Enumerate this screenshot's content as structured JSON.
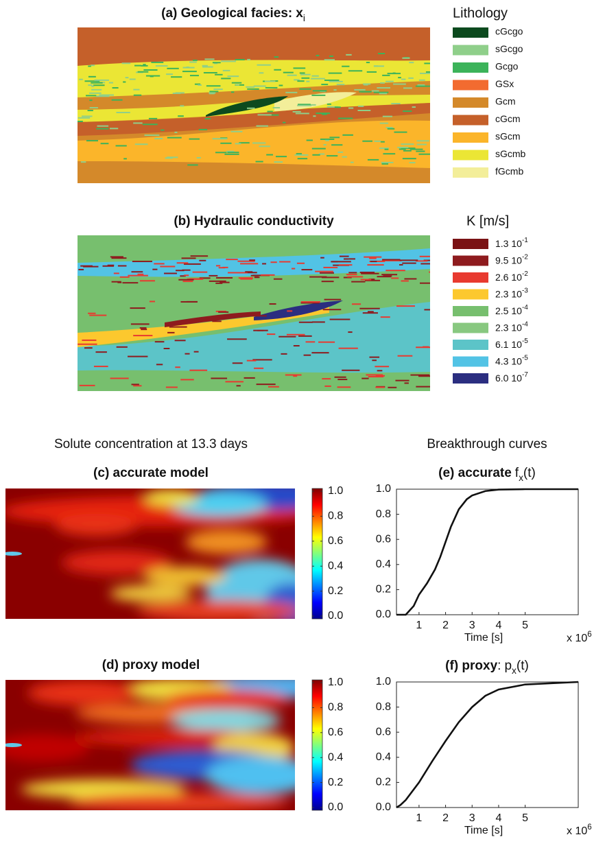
{
  "facies_panel": {
    "title": [
      {
        "text": "(a) Geological facies",
        "bold": true
      },
      {
        "text": ":",
        "bold": true
      },
      {
        "text": "x",
        "bold": true,
        "space_before": true
      },
      {
        "text": "i",
        "sub": true
      }
    ],
    "legend_title": "Lithology",
    "legend": [
      {
        "label": "cGcgo",
        "color": "#0c4a1e"
      },
      {
        "label": "sGcgo",
        "color": "#8fcf8a"
      },
      {
        "label": "Gcgo",
        "color": "#3cb35a"
      },
      {
        "label": "GSx",
        "color": "#f26b30"
      },
      {
        "label": "Gcm",
        "color": "#d4892a"
      },
      {
        "label": "cGcm",
        "color": "#c5602a"
      },
      {
        "label": "sGcm",
        "color": "#fbb52a"
      },
      {
        "label": "sGcmb",
        "color": "#ebe635"
      },
      {
        "label": "fGcmb",
        "color": "#f3ee9a"
      }
    ]
  },
  "conductivity_panel": {
    "title": [
      {
        "text": "(b) Hydraulic conductivity",
        "bold": true
      }
    ],
    "legend_title": "K [m/s]",
    "legend": [
      {
        "label": [
          {
            "text": "1.3 10"
          },
          {
            "text": "-1",
            "sup": true
          }
        ],
        "color": "#7a1214"
      },
      {
        "label": [
          {
            "text": "9.5 10"
          },
          {
            "text": "-2",
            "sup": true
          }
        ],
        "color": "#8e1b1e"
      },
      {
        "label": [
          {
            "text": "2.6 10"
          },
          {
            "text": "-2",
            "sup": true
          }
        ],
        "color": "#e83a30"
      },
      {
        "label": [
          {
            "text": "2.3 10"
          },
          {
            "text": "-3",
            "sup": true
          }
        ],
        "color": "#fcc82e"
      },
      {
        "label": [
          {
            "text": "2.5 10"
          },
          {
            "text": "-4",
            "sup": true
          }
        ],
        "color": "#77bf6e"
      },
      {
        "label": [
          {
            "text": "2.3 10"
          },
          {
            "text": "-4",
            "sup": true
          }
        ],
        "color": "#88c880"
      },
      {
        "label": [
          {
            "text": "6.1 10"
          },
          {
            "text": "-5",
            "sup": true
          }
        ],
        "color": "#5cc4c8"
      },
      {
        "label": [
          {
            "text": "4.3 10"
          },
          {
            "text": "-5",
            "sup": true
          }
        ],
        "color": "#52c3e5"
      },
      {
        "label": [
          {
            "text": "6.0 10"
          },
          {
            "text": "-7",
            "sup": true
          }
        ],
        "color": "#2b2e80"
      }
    ]
  },
  "concentration_heading": "Solute concentration at 13.3 days",
  "breakthrough_heading": "Breakthrough curves",
  "chart_data": [
    {
      "type": "heatmap",
      "title": [
        {
          "text": "(c) accurate model",
          "bold": true
        }
      ],
      "colormap": "jet",
      "clim": [
        0,
        1
      ],
      "colorbar_ticks": [
        {
          "value": 1,
          "label": "1.0"
        },
        {
          "value": 0.8,
          "label": "0.8"
        },
        {
          "value": 0.6,
          "label": "0.6"
        },
        {
          "value": 0.4,
          "label": "0.4"
        },
        {
          "value": 0.2,
          "label": "0.2"
        },
        {
          "value": 0,
          "label": "0.0"
        }
      ]
    },
    {
      "type": "heatmap",
      "title": [
        {
          "text": "(d) proxy model",
          "bold": true
        }
      ],
      "colormap": "jet",
      "clim": [
        0,
        1
      ],
      "colorbar_ticks": [
        {
          "value": 1,
          "label": "1.0"
        },
        {
          "value": 0.8,
          "label": "0.8"
        },
        {
          "value": 0.6,
          "label": "0.6"
        },
        {
          "value": 0.4,
          "label": "0.4"
        },
        {
          "value": 0.2,
          "label": "0.2"
        },
        {
          "value": 0,
          "label": "0.0"
        }
      ]
    },
    {
      "type": "line",
      "title": [
        {
          "text": "(e) accurate",
          "bold": true
        },
        {
          "text": "f",
          "space_before": true
        },
        {
          "text": "x",
          "sub": true
        },
        {
          "text": "(t)"
        }
      ],
      "xlabel": "Time [s]",
      "x_multiplier": [
        {
          "text": "x 10"
        },
        {
          "text": "6",
          "sup": true
        }
      ],
      "xlim": [
        0.15,
        7.0
      ],
      "ylim": [
        0,
        1
      ],
      "xticks": [
        1,
        2,
        3,
        4,
        5
      ],
      "yticks": [
        {
          "value": 0,
          "label": "0.0"
        },
        {
          "value": 0.2,
          "label": "0.2"
        },
        {
          "value": 0.4,
          "label": "0.4"
        },
        {
          "value": 0.6,
          "label": "0.6"
        },
        {
          "value": 0.8,
          "label": "0.8"
        },
        {
          "value": 1,
          "label": "1.0"
        }
      ],
      "series": [
        {
          "color": "#111111",
          "x": [
            0.15,
            0.5,
            0.8,
            1.0,
            1.3,
            1.6,
            1.8,
            2.0,
            2.2,
            2.5,
            2.8,
            3.0,
            3.5,
            4.0,
            5.0,
            7.0
          ],
          "values": [
            0,
            0,
            0.07,
            0.16,
            0.25,
            0.36,
            0.46,
            0.58,
            0.7,
            0.84,
            0.92,
            0.95,
            0.985,
            0.997,
            1.0,
            1.0
          ]
        }
      ]
    },
    {
      "type": "line",
      "title": [
        {
          "text": "(f) proxy",
          "bold": true
        },
        {
          "text": ":"
        },
        {
          "text": "p",
          "space_before": true
        },
        {
          "text": "x",
          "sub": true
        },
        {
          "text": "(t)"
        }
      ],
      "xlabel": "Time [s]",
      "x_multiplier": [
        {
          "text": "x 10"
        },
        {
          "text": "6",
          "sup": true
        }
      ],
      "xlim": [
        0.15,
        7.0
      ],
      "ylim": [
        0,
        1
      ],
      "xticks": [
        1,
        2,
        3,
        4,
        5
      ],
      "yticks": [
        {
          "value": 0,
          "label": "0.0"
        },
        {
          "value": 0.2,
          "label": "0.2"
        },
        {
          "value": 0.4,
          "label": "0.4"
        },
        {
          "value": 0.6,
          "label": "0.6"
        },
        {
          "value": 0.8,
          "label": "0.8"
        },
        {
          "value": 1,
          "label": "1.0"
        }
      ],
      "series": [
        {
          "color": "#111111",
          "x": [
            0.15,
            0.3,
            0.5,
            1.0,
            1.5,
            2.0,
            2.5,
            3.0,
            3.5,
            4.0,
            5.0,
            7.0
          ],
          "values": [
            0,
            0.02,
            0.06,
            0.2,
            0.37,
            0.53,
            0.68,
            0.8,
            0.89,
            0.94,
            0.98,
            1.0
          ]
        }
      ]
    }
  ]
}
